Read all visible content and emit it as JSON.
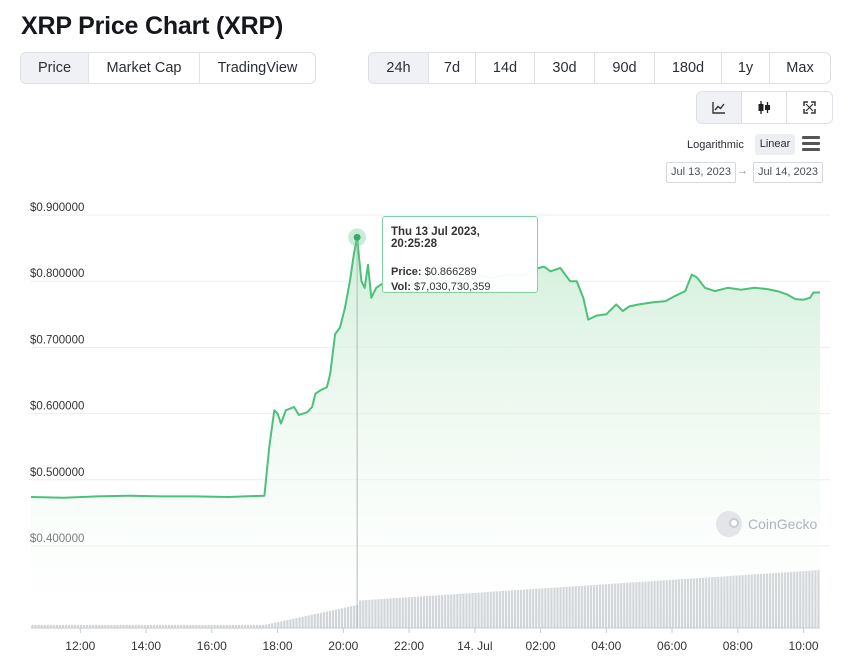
{
  "page": {
    "title": "XRP Price Chart (XRP)"
  },
  "view_tabs": [
    {
      "label": "Price",
      "active": true
    },
    {
      "label": "Market Cap",
      "active": false
    },
    {
      "label": "TradingView",
      "active": false
    }
  ],
  "range_tabs": [
    {
      "label": "24h",
      "active": true
    },
    {
      "label": "7d",
      "active": false
    },
    {
      "label": "14d",
      "active": false
    },
    {
      "label": "30d",
      "active": false
    },
    {
      "label": "90d",
      "active": false
    },
    {
      "label": "180d",
      "active": false
    },
    {
      "label": "1y",
      "active": false
    },
    {
      "label": "Max",
      "active": false
    }
  ],
  "chart_type_tabs": [
    {
      "icon": "line-chart-icon",
      "active": true
    },
    {
      "icon": "candlestick-icon",
      "active": false
    },
    {
      "icon": "fullscreen-icon",
      "active": false
    }
  ],
  "scale": {
    "logarithmic_label": "Logarithmic",
    "linear_label": "Linear",
    "selected": "Linear",
    "menu_icon": "hamburger-menu-icon"
  },
  "date_range": {
    "from": "Jul 13, 2023",
    "to": "Jul 14, 2023",
    "arrow": "→"
  },
  "tooltip": {
    "date": "Thu 13 Jul 2023, 20:25:28",
    "price_label": "Price:",
    "price_value": "$0.866289",
    "vol_label": "Vol:",
    "vol_value": "$7,030,730,359"
  },
  "watermark": {
    "text": "CoinGecko"
  },
  "colors": {
    "line": "#4cc17a",
    "fill_top": "#d6f0dc",
    "fill_bottom": "#ffffff",
    "volume": "#c5c9ce",
    "grid": "#ebedf0",
    "tooltip_border": "#7fd3a0"
  },
  "chart_data": {
    "type": "area",
    "title": "",
    "xlabel": "",
    "ylabel": "",
    "ylim": [
      0.35,
      0.9
    ],
    "y_ticks": [
      "$0.400000",
      "$0.500000",
      "$0.600000",
      "$0.700000",
      "$0.800000",
      "$0.900000"
    ],
    "y_tick_values": [
      0.4,
      0.5,
      0.6,
      0.7,
      0.8,
      0.9
    ],
    "x_ticks": [
      "12:00",
      "14:00",
      "16:00",
      "18:00",
      "20:00",
      "22:00",
      "14. Jul",
      "02:00",
      "04:00",
      "06:00",
      "08:00",
      "10:00"
    ],
    "x_tick_hours": [
      12,
      14,
      16,
      18,
      20,
      22,
      24,
      26,
      28,
      30,
      32,
      34
    ],
    "x_range_hours": [
      10.5,
      34.5
    ],
    "grid": true,
    "series": [
      {
        "values_unit": "USD",
        "points": [
          [
            10.5,
            0.474
          ],
          [
            11.5,
            0.473
          ],
          [
            12.5,
            0.475
          ],
          [
            13.5,
            0.476
          ],
          [
            14.5,
            0.475
          ],
          [
            15.5,
            0.475
          ],
          [
            16.5,
            0.474
          ],
          [
            17.0,
            0.475
          ],
          [
            17.6,
            0.476
          ],
          [
            17.75,
            0.55
          ],
          [
            17.9,
            0.605
          ],
          [
            18.0,
            0.6
          ],
          [
            18.1,
            0.585
          ],
          [
            18.25,
            0.605
          ],
          [
            18.5,
            0.61
          ],
          [
            18.65,
            0.598
          ],
          [
            18.9,
            0.602
          ],
          [
            19.05,
            0.61
          ],
          [
            19.15,
            0.63
          ],
          [
            19.3,
            0.635
          ],
          [
            19.5,
            0.64
          ],
          [
            19.6,
            0.66
          ],
          [
            19.75,
            0.72
          ],
          [
            19.9,
            0.73
          ],
          [
            20.05,
            0.76
          ],
          [
            20.2,
            0.8
          ],
          [
            20.32,
            0.84
          ],
          [
            20.42,
            0.866
          ],
          [
            20.55,
            0.8
          ],
          [
            20.65,
            0.79
          ],
          [
            20.75,
            0.825
          ],
          [
            20.85,
            0.775
          ],
          [
            21.0,
            0.79
          ],
          [
            21.3,
            0.8
          ],
          [
            21.6,
            0.793
          ],
          [
            22.0,
            0.8
          ],
          [
            22.5,
            0.805
          ],
          [
            23.0,
            0.8
          ],
          [
            23.5,
            0.8
          ],
          [
            24.0,
            0.81
          ],
          [
            24.5,
            0.805
          ],
          [
            25.0,
            0.81
          ],
          [
            25.4,
            0.808
          ],
          [
            25.8,
            0.818
          ],
          [
            26.1,
            0.822
          ],
          [
            26.3,
            0.815
          ],
          [
            26.6,
            0.82
          ],
          [
            26.9,
            0.8
          ],
          [
            27.1,
            0.8
          ],
          [
            27.3,
            0.775
          ],
          [
            27.45,
            0.742
          ],
          [
            27.7,
            0.748
          ],
          [
            28.0,
            0.75
          ],
          [
            28.3,
            0.765
          ],
          [
            28.5,
            0.755
          ],
          [
            28.7,
            0.762
          ],
          [
            29.0,
            0.765
          ],
          [
            29.4,
            0.768
          ],
          [
            29.8,
            0.77
          ],
          [
            30.1,
            0.778
          ],
          [
            30.4,
            0.785
          ],
          [
            30.6,
            0.81
          ],
          [
            30.75,
            0.806
          ],
          [
            31.0,
            0.79
          ],
          [
            31.3,
            0.785
          ],
          [
            31.7,
            0.79
          ],
          [
            32.1,
            0.787
          ],
          [
            32.5,
            0.79
          ],
          [
            32.9,
            0.788
          ],
          [
            33.2,
            0.785
          ],
          [
            33.5,
            0.78
          ],
          [
            33.75,
            0.773
          ],
          [
            34.0,
            0.772
          ],
          [
            34.2,
            0.775
          ],
          [
            34.3,
            0.783
          ],
          [
            34.5,
            0.783
          ]
        ]
      }
    ],
    "hover": {
      "x": 20.42,
      "y": 0.866289
    }
  }
}
